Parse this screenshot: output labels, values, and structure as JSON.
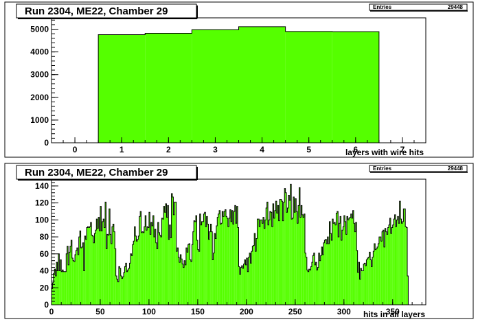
{
  "colors": {
    "fill": "#55ff00",
    "line": "#000000",
    "frame": "#000000",
    "background": "#ffffff"
  },
  "chart_data": [
    {
      "type": "bar",
      "title": "Run 2304, ME22, Chamber 29",
      "xlabel": "layers with wire hits",
      "ylabel": "",
      "stats": {
        "label": "Entries",
        "value": "29448"
      },
      "xlim": [
        -0.5,
        7.5
      ],
      "ylim": [
        0,
        5500
      ],
      "xticks": [
        0,
        1,
        2,
        3,
        4,
        5,
        6,
        7
      ],
      "yticks": [
        0,
        1000,
        2000,
        3000,
        4000,
        5000
      ],
      "bin_width": 1,
      "bins": [
        0.5,
        1.5,
        2.5,
        3.5,
        4.5,
        5.5
      ],
      "values": [
        4760,
        4820,
        4980,
        5110,
        4900,
        4890
      ],
      "grid": false,
      "legend": "none"
    },
    {
      "type": "bar",
      "title": "Run 2304, ME22, Chamber 29",
      "xlabel": "hits in all layers",
      "ylabel": "",
      "stats": {
        "label": "Entries",
        "value": "29448"
      },
      "xlim": [
        0,
        384
      ],
      "ylim": [
        0,
        148
      ],
      "xticks": [
        0,
        50,
        100,
        150,
        200,
        250,
        300,
        350
      ],
      "yticks": [
        0,
        20,
        40,
        60,
        80,
        100,
        120,
        140
      ],
      "bin_width": 1,
      "bin_start": 0,
      "values": [
        19,
        26,
        37,
        42,
        34,
        50,
        40,
        60,
        40,
        53,
        39,
        41,
        39,
        39,
        39,
        60,
        69,
        47,
        62,
        69,
        76,
        55,
        52,
        51,
        59,
        64,
        67,
        59,
        80,
        87,
        67,
        68,
        73,
        40,
        81,
        77,
        91,
        92,
        91,
        92,
        97,
        82,
        81,
        73,
        84,
        88,
        101,
        90,
        103,
        87,
        116,
        87,
        98,
        101,
        91,
        121,
        66,
        83,
        82,
        113,
        83,
        72,
        92,
        95,
        86,
        66,
        34,
        30,
        27,
        45,
        43,
        34,
        31,
        33,
        38,
        45,
        49,
        39,
        41,
        43,
        49,
        60,
        58,
        71,
        75,
        92,
        81,
        75,
        77,
        81,
        104,
        110,
        85,
        86,
        85,
        92,
        105,
        88,
        92,
        91,
        109,
        83,
        97,
        93,
        105,
        80,
        89,
        73,
        66,
        97,
        85,
        82,
        80,
        102,
        101,
        116,
        109,
        119,
        103,
        117,
        77,
        94,
        79,
        131,
        127,
        106,
        121,
        121,
        63,
        67,
        56,
        50,
        59,
        54,
        48,
        44,
        52,
        47,
        67,
        62,
        71,
        72,
        53,
        51,
        71,
        86,
        99,
        98,
        105,
        76,
        65,
        63,
        107,
        94,
        98,
        98,
        107,
        109,
        92,
        104,
        95,
        77,
        86,
        95,
        86,
        53,
        61,
        84,
        78,
        93,
        103,
        107,
        111,
        95,
        96,
        110,
        104,
        110,
        112,
        104,
        102,
        92,
        102,
        112,
        98,
        111,
        95,
        110,
        117,
        96,
        116,
        91,
        45,
        36,
        44,
        46,
        43,
        48,
        53,
        47,
        55,
        39,
        56,
        61,
        49,
        63,
        69,
        70,
        84,
        63,
        78,
        101,
        101,
        92,
        100,
        100,
        96,
        103,
        90,
        100,
        114,
        121,
        94,
        100,
        110,
        109,
        92,
        119,
        102,
        111,
        122,
        108,
        117,
        99,
        124,
        124,
        122,
        99,
        121,
        137,
        132,
        109,
        114,
        129,
        123,
        142,
        101,
        102,
        127,
        109,
        125,
        110,
        96,
        117,
        138,
        103,
        117,
        106,
        103,
        107,
        61,
        56,
        41,
        39,
        42,
        41,
        45,
        50,
        58,
        61,
        47,
        50,
        41,
        44,
        61,
        52,
        58,
        68,
        59,
        73,
        76,
        77,
        72,
        80,
        72,
        98,
        84,
        76,
        101,
        96,
        97,
        94,
        108,
        110,
        80,
        96,
        104,
        76,
        88,
        92,
        105,
        98,
        83,
        104,
        100,
        102,
        103,
        107,
        102,
        111,
        96,
        86,
        97,
        64,
        38,
        50,
        30,
        43,
        40,
        40,
        48,
        49,
        46,
        53,
        55,
        56,
        62,
        53,
        45,
        56,
        63,
        72,
        65,
        66,
        68,
        72,
        80,
        80,
        75,
        86,
        88,
        68,
        90,
        86,
        83,
        91,
        94,
        102,
        84,
        91,
        94,
        101,
        106,
        92,
        100,
        104,
        96,
        122,
        101,
        96,
        98,
        113,
        113,
        92,
        91,
        34
      ],
      "grid": false,
      "legend": "none"
    }
  ]
}
